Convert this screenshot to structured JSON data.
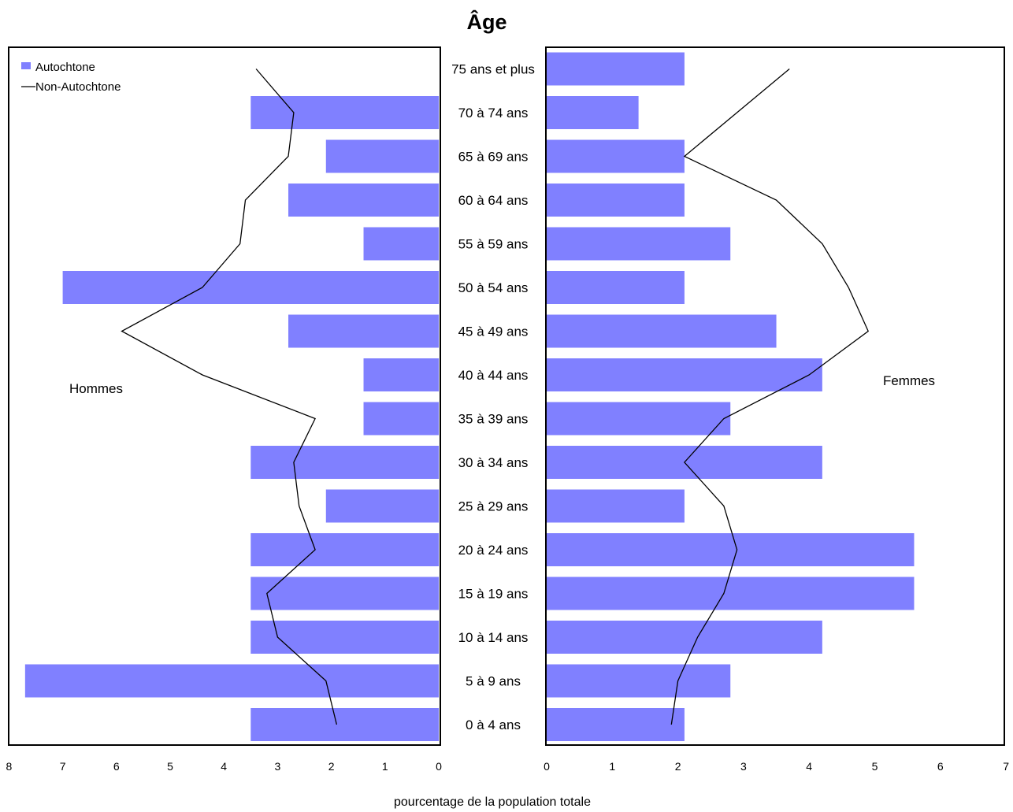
{
  "chart_data": {
    "type": "bar",
    "orientation": "horizontal-population-pyramid",
    "title": "Âge",
    "xlabel": "pourcentage de la population totale",
    "categories": [
      "0 à 4 ans",
      "5 à 9 ans",
      "10 à 14 ans",
      "15 à 19 ans",
      "20 à 24 ans",
      "25 à 29 ans",
      "30 à 34 ans",
      "35 à 39 ans",
      "40 à 44 ans",
      "45 à 49 ans",
      "50 à 54 ans",
      "55 à 59 ans",
      "60 à 64 ans",
      "65 à 69 ans",
      "70 à 74 ans",
      "75 ans et plus"
    ],
    "legend": {
      "placement": "top-left",
      "items": [
        "Autochtone",
        "Non-Autochtone"
      ]
    },
    "colors": {
      "bar": "#8080ff",
      "line": "#000000"
    },
    "panels": [
      {
        "label": "Hommes",
        "xlim": [
          8,
          0
        ],
        "ticks": [
          "8",
          "7",
          "6",
          "5",
          "4",
          "3",
          "2",
          "1",
          "0"
        ],
        "series": [
          {
            "name": "Autochtone",
            "kind": "bar",
            "values": [
              3.5,
              7.7,
              3.5,
              3.5,
              3.5,
              2.1,
              3.5,
              1.4,
              1.4,
              2.8,
              7.0,
              1.4,
              2.8,
              2.1,
              3.5,
              null
            ]
          },
          {
            "name": "Non-Autochtone",
            "kind": "line",
            "values": [
              1.9,
              2.1,
              3.0,
              3.2,
              2.3,
              2.6,
              2.7,
              2.3,
              4.4,
              5.9,
              4.4,
              3.7,
              3.6,
              2.8,
              2.7,
              3.4
            ]
          }
        ]
      },
      {
        "label": "Femmes",
        "xlim": [
          0,
          7
        ],
        "ticks": [
          "0",
          "1",
          "2",
          "3",
          "4",
          "5",
          "6",
          "7"
        ],
        "series": [
          {
            "name": "Autochtone",
            "kind": "bar",
            "values": [
              2.1,
              2.8,
              4.2,
              5.6,
              5.6,
              2.1,
              4.2,
              2.8,
              4.2,
              3.5,
              2.1,
              2.8,
              2.1,
              2.1,
              1.4,
              2.1
            ]
          },
          {
            "name": "Non-Autochtone",
            "kind": "line",
            "values": [
              1.9,
              2.0,
              2.3,
              2.7,
              2.9,
              2.7,
              2.1,
              2.7,
              4.0,
              4.9,
              4.6,
              4.2,
              3.5,
              2.1,
              null,
              3.7
            ]
          }
        ]
      }
    ]
  }
}
